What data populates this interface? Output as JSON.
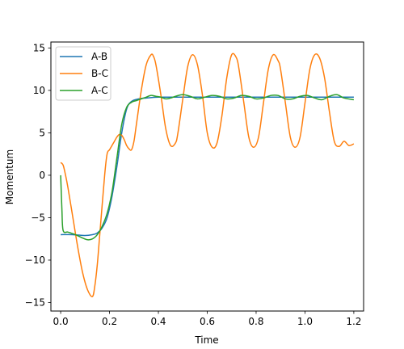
{
  "chart_data": {
    "type": "line",
    "xlabel": "Time",
    "ylabel": "Momentum",
    "xlim": [
      -0.04,
      1.24
    ],
    "ylim": [
      -16,
      15.7
    ],
    "xticks": [
      0.0,
      0.2,
      0.4,
      0.6,
      0.8,
      1.0,
      1.2
    ],
    "xtick_labels": [
      "0.0",
      "0.2",
      "0.4",
      "0.6",
      "0.8",
      "1.0",
      "1.2"
    ],
    "yticks": [
      -15,
      -10,
      -5,
      0,
      5,
      10,
      15
    ],
    "ytick_labels": [
      "−15",
      "−10",
      "−5",
      "0",
      "5",
      "10",
      "15"
    ],
    "legend_position": "top-left",
    "grid": false,
    "series": [
      {
        "name": "A-B",
        "color": "#1f77b4",
        "x": [
          0.0,
          0.05,
          0.1,
          0.13,
          0.15,
          0.17,
          0.19,
          0.21,
          0.23,
          0.25,
          0.27,
          0.29,
          0.32,
          0.35,
          0.4,
          0.5,
          0.6,
          0.7,
          0.8,
          0.9,
          1.0,
          1.1,
          1.2
        ],
        "values": [
          -7.0,
          -7.0,
          -7.1,
          -7.0,
          -6.8,
          -6.2,
          -5.0,
          -2.5,
          1.0,
          5.0,
          7.8,
          8.7,
          9.0,
          9.1,
          9.2,
          9.2,
          9.2,
          9.2,
          9.2,
          9.2,
          9.2,
          9.2,
          9.2
        ]
      },
      {
        "name": "B-C",
        "color": "#ff7f0e",
        "x": [
          0.0,
          0.01,
          0.02,
          0.03,
          0.05,
          0.07,
          0.09,
          0.11,
          0.13,
          0.14,
          0.15,
          0.16,
          0.18,
          0.19,
          0.2,
          0.21,
          0.22,
          0.23,
          0.24,
          0.25,
          0.26,
          0.27,
          0.28,
          0.29,
          0.3,
          0.31,
          0.33,
          0.35,
          0.37,
          0.38,
          0.39,
          0.41,
          0.43,
          0.45,
          0.47,
          0.48,
          0.5,
          0.52,
          0.54,
          0.56,
          0.58,
          0.6,
          0.62,
          0.64,
          0.66,
          0.68,
          0.7,
          0.72,
          0.73,
          0.75,
          0.77,
          0.79,
          0.81,
          0.83,
          0.85,
          0.87,
          0.89,
          0.9,
          0.92,
          0.94,
          0.96,
          0.98,
          1.0,
          1.02,
          1.04,
          1.06,
          1.08,
          1.1,
          1.12,
          1.14,
          1.16,
          1.18,
          1.2
        ],
        "values": [
          1.5,
          1.2,
          0.0,
          -1.5,
          -5.0,
          -8.5,
          -11.5,
          -13.5,
          -14.3,
          -13.0,
          -10.5,
          -7.0,
          0.0,
          2.5,
          3.0,
          3.5,
          4.0,
          4.5,
          4.8,
          4.7,
          4.2,
          3.5,
          3.1,
          3.0,
          4.0,
          6.0,
          10.0,
          13.0,
          14.2,
          14.0,
          13.0,
          9.5,
          5.5,
          3.5,
          3.8,
          5.0,
          9.0,
          12.8,
          14.2,
          13.0,
          9.5,
          5.0,
          3.3,
          3.8,
          7.0,
          11.5,
          14.2,
          13.8,
          12.5,
          8.5,
          4.5,
          3.3,
          4.5,
          8.5,
          12.5,
          14.2,
          13.5,
          12.5,
          8.5,
          4.5,
          3.3,
          4.5,
          8.5,
          12.5,
          14.2,
          13.8,
          11.5,
          7.5,
          4.0,
          3.4,
          4.0,
          3.5,
          3.7
        ]
      },
      {
        "name": "A-C",
        "color": "#2ca02c",
        "x": [
          0.0,
          0.005,
          0.01,
          0.03,
          0.06,
          0.09,
          0.11,
          0.13,
          0.15,
          0.17,
          0.19,
          0.21,
          0.23,
          0.25,
          0.27,
          0.29,
          0.31,
          0.33,
          0.35,
          0.37,
          0.39,
          0.41,
          0.43,
          0.45,
          0.47,
          0.5,
          0.53,
          0.56,
          0.59,
          0.62,
          0.65,
          0.68,
          0.71,
          0.74,
          0.77,
          0.8,
          0.83,
          0.86,
          0.89,
          0.92,
          0.95,
          0.98,
          1.01,
          1.04,
          1.07,
          1.1,
          1.13,
          1.16,
          1.2
        ],
        "values": [
          0.0,
          -4.0,
          -6.5,
          -6.7,
          -7.0,
          -7.4,
          -7.6,
          -7.5,
          -7.0,
          -6.0,
          -4.5,
          -2.0,
          2.0,
          6.0,
          8.0,
          8.6,
          8.8,
          9.0,
          9.2,
          9.4,
          9.3,
          9.2,
          9.0,
          9.1,
          9.3,
          9.5,
          9.3,
          9.0,
          9.2,
          9.4,
          9.3,
          9.0,
          9.1,
          9.4,
          9.3,
          9.0,
          9.1,
          9.4,
          9.4,
          9.0,
          9.0,
          9.3,
          9.4,
          9.1,
          8.9,
          9.3,
          9.5,
          9.1,
          8.9
        ]
      }
    ]
  }
}
